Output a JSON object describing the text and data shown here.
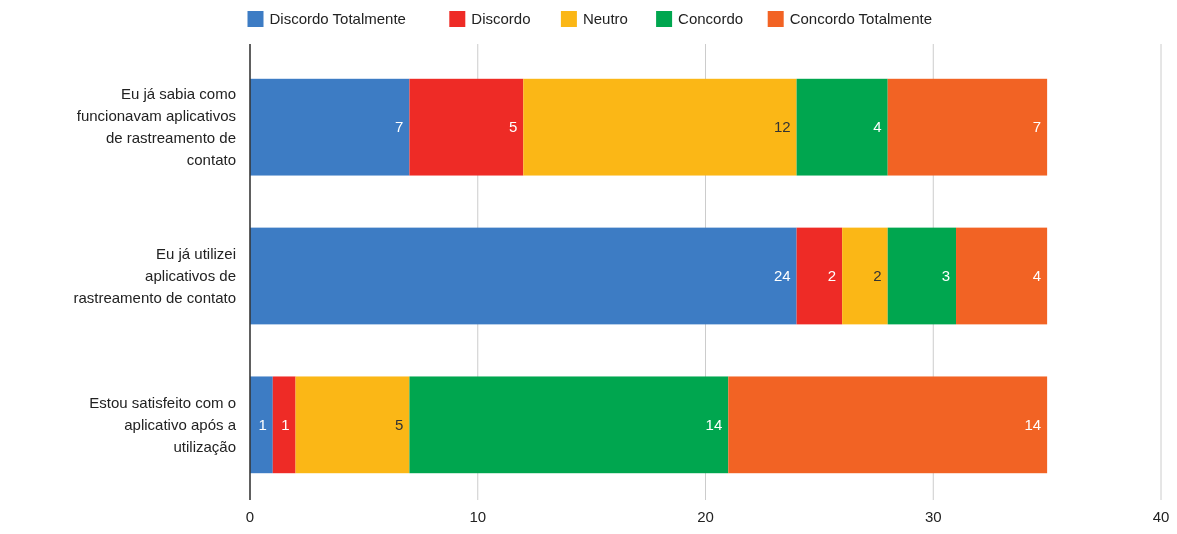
{
  "chart_data": {
    "type": "bar",
    "orientation": "horizontal",
    "stacked": true,
    "data_labels": true,
    "grid": "x",
    "legend": "top",
    "categories": [
      "Eu já sabia como funcionavam aplicativos de rastreamento de contato",
      "Eu já utilizei aplicativos de rastreamento de contato",
      "Estou satisfeito com o aplicativo após a utilização"
    ],
    "series": [
      {
        "name": "Discordo Totalmente",
        "color": "#3d7cc4",
        "values": [
          7,
          24,
          1
        ]
      },
      {
        "name": "Discordo",
        "color": "#ee2b26",
        "values": [
          5,
          2,
          1
        ]
      },
      {
        "name": "Neutro",
        "color": "#fbb716",
        "values": [
          12,
          2,
          5
        ]
      },
      {
        "name": "Concordo",
        "color": "#00a64f",
        "values": [
          4,
          3,
          14
        ]
      },
      {
        "name": "Concordo Totalmente",
        "color": "#f26324",
        "values": [
          7,
          4,
          14
        ]
      }
    ],
    "xlim": [
      0,
      40
    ],
    "xticks": [
      0,
      10,
      20,
      30,
      40
    ]
  }
}
